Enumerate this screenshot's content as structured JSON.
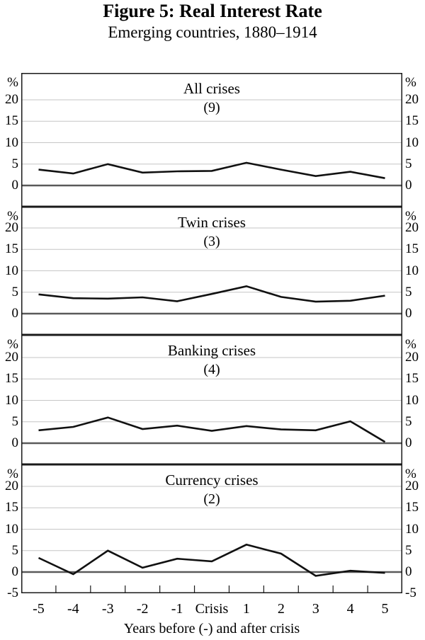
{
  "chart_data": {
    "type": "line",
    "title": "Figure 5: Real Interest Rate",
    "subtitle": "Emerging countries, 1880–1914",
    "layout": "4 vertically stacked panels, shared x axis",
    "grid": "horizontal gridlines only",
    "line_color": "#111111",
    "categories": [
      "-5",
      "-4",
      "-3",
      "-2",
      "-1",
      "Crisis",
      "1",
      "2",
      "3",
      "4",
      "5"
    ],
    "x_axis_label": "Years before (-) and after crisis",
    "y_unit": "%",
    "y_ticks": [
      20,
      15,
      10,
      5,
      0
    ],
    "y_bottom_tick_last_panel": "-5",
    "ylim": [
      -5,
      26
    ],
    "panels": [
      {
        "title": "All crises",
        "count": "(9)",
        "values": [
          3.7,
          2.8,
          5.0,
          3.0,
          3.3,
          3.4,
          5.3,
          3.7,
          2.2,
          3.2,
          1.7
        ]
      },
      {
        "title": "Twin crises",
        "count": "(3)",
        "values": [
          4.5,
          3.6,
          3.5,
          3.8,
          2.9,
          4.6,
          6.4,
          3.9,
          2.8,
          3.0,
          4.2
        ]
      },
      {
        "title": "Banking crises",
        "count": "(4)",
        "values": [
          3.0,
          3.8,
          6.0,
          3.3,
          4.1,
          2.9,
          4.0,
          3.2,
          3.0,
          5.1,
          0.3
        ]
      },
      {
        "title": "Currency crises",
        "count": "(2)",
        "values": [
          3.3,
          -0.5,
          5.0,
          1.0,
          3.1,
          2.5,
          6.4,
          4.3,
          -0.9,
          0.3,
          -0.2
        ]
      }
    ]
  }
}
